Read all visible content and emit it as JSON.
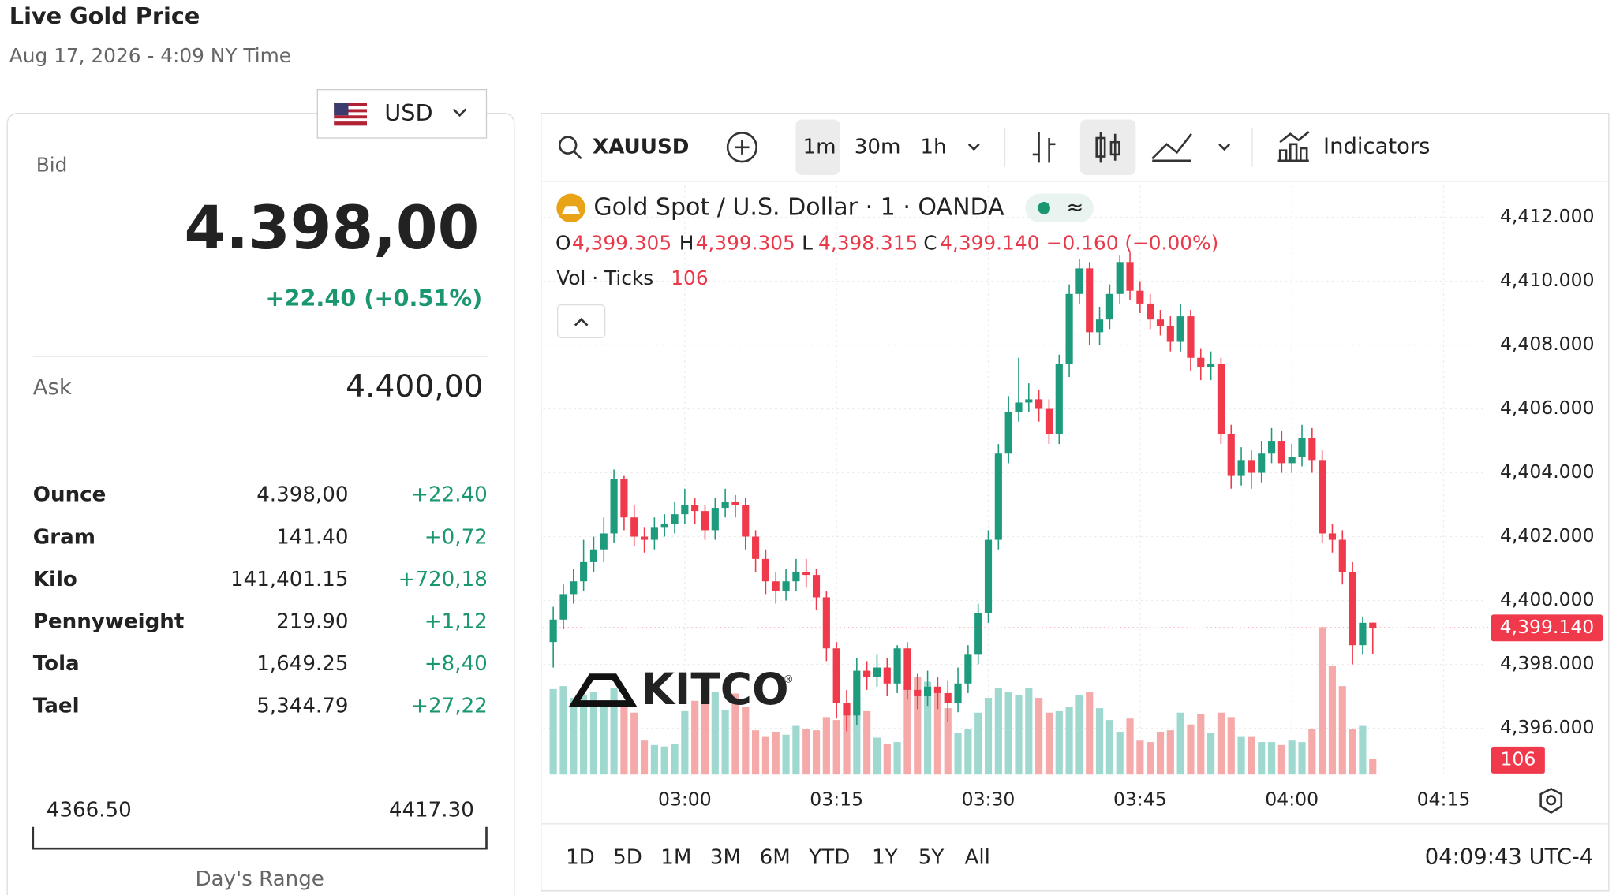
{
  "header": {
    "title": "Live Gold Price",
    "date": "Aug 17, 2026 - 4:09 NY Time"
  },
  "quote": {
    "currency": "USD",
    "bid_label": "Bid",
    "bid": "4.398,00",
    "change": "+22.40 (+0.51%)",
    "ask_label": "Ask",
    "ask": "4.400,00",
    "rows": [
      [
        "Ounce",
        "4.398,00",
        "+22.40"
      ],
      [
        "Gram",
        "141.40",
        "+0,72"
      ],
      [
        "Kilo",
        "141,401.15",
        "+720,18"
      ],
      [
        "Pennyweight",
        "219.90",
        "+1,12"
      ],
      [
        "Tola",
        "1,649.25",
        "+8,40"
      ],
      [
        "Tael",
        "5,344.79",
        "+27,22"
      ]
    ],
    "range_low": "4366.50",
    "range_high": "4417.30",
    "range_label": "Day's Range"
  },
  "toolbar": {
    "symbol": "XAUUSD",
    "intervals": [
      "1m",
      "30m",
      "1h"
    ],
    "indicators": "Indicators"
  },
  "footer": {
    "ranges": [
      "1D",
      "5D",
      "1M",
      "3M",
      "6M",
      "YTD",
      "1Y",
      "5Y",
      "All"
    ],
    "clock": "04:09:43 UTC-4"
  },
  "logo": "KITCO",
  "chart_data": {
    "type": "candlestick",
    "title": "Gold Spot / U.S. Dollar · 1 · OANDA",
    "ohlc": [
      {
        "key": "O",
        "value": "4,399.305"
      },
      {
        "key": "H",
        "value": "4,399.305"
      },
      {
        "key": "L",
        "value": "4,398.315"
      },
      {
        "key": "C",
        "value": "4,399.140"
      }
    ],
    "change": "−0.160 (−0.00%)",
    "volume_label": "Vol · Ticks",
    "price_tag": "4,399.140",
    "up_color": "#1e9a7c",
    "down_color": "#f0394b",
    "volume_up_color": "#9ed8ce",
    "volume_down_color": "#f5a9a9",
    "x": [
      "02:47",
      "02:48",
      "02:49",
      "02:50",
      "02:51",
      "02:52",
      "02:53",
      "02:54",
      "02:55",
      "02:56",
      "02:57",
      "02:58",
      "02:59",
      "03:00",
      "03:01",
      "03:02",
      "03:03",
      "03:04",
      "03:05",
      "03:06",
      "03:07",
      "03:08",
      "03:09",
      "03:10",
      "03:11",
      "03:12",
      "03:13",
      "03:14",
      "03:15",
      "03:16",
      "03:17",
      "03:18",
      "03:19",
      "03:20",
      "03:21",
      "03:22",
      "03:23",
      "03:24",
      "03:25",
      "03:26",
      "03:27",
      "03:28",
      "03:29",
      "03:30",
      "03:31",
      "03:32",
      "03:33",
      "03:34",
      "03:35",
      "03:36",
      "03:37",
      "03:38",
      "03:39",
      "03:40",
      "03:41",
      "03:42",
      "03:43",
      "03:44",
      "03:45",
      "03:46",
      "03:47",
      "03:48",
      "03:49",
      "03:50",
      "03:51",
      "03:52",
      "03:53",
      "03:54",
      "03:55",
      "03:56",
      "03:57",
      "03:58",
      "03:59",
      "04:00",
      "04:01",
      "04:02",
      "04:03",
      "04:04",
      "04:05",
      "04:06",
      "04:07",
      "04:08"
    ],
    "open": [
      4398.7,
      4399.4,
      4400.2,
      4400.6,
      4401.2,
      4401.6,
      4402.1,
      4403.8,
      4402.6,
      4402.0,
      4401.9,
      4402.3,
      4402.4,
      4402.7,
      4403.0,
      4402.8,
      4402.2,
      4402.9,
      4403.1,
      4403.0,
      4402.0,
      4401.3,
      4400.6,
      4400.3,
      4400.6,
      4400.9,
      4400.8,
      4400.1,
      4398.5,
      4396.8,
      4396.4,
      4397.8,
      4397.6,
      4397.9,
      4397.4,
      4398.5,
      4397.2,
      4397.0,
      4397.3,
      4397.1,
      4396.8,
      4397.4,
      4398.3,
      4399.6,
      4401.9,
      4404.6,
      4405.9,
      4406.2,
      4406.3,
      4406.0,
      4405.2,
      4407.4,
      4409.6,
      4410.4,
      4408.4,
      4408.8,
      4409.6,
      4410.6,
      4409.7,
      4409.3,
      4408.8,
      4408.6,
      4408.1,
      4408.9,
      4407.6,
      4407.3,
      4407.4,
      4405.2,
      4403.9,
      4404.4,
      4404.0,
      4404.6,
      4405.0,
      4404.3,
      4404.5,
      4405.1,
      4404.4,
      4402.1,
      4401.9,
      4400.9,
      4398.6,
      4399.305
    ],
    "high": [
      4399.8,
      4400.5,
      4401.0,
      4401.9,
      4402.0,
      4402.6,
      4404.1,
      4403.9,
      4403.0,
      4402.3,
      4402.6,
      4402.7,
      4403.1,
      4403.5,
      4403.2,
      4403.0,
      4403.2,
      4403.5,
      4403.3,
      4403.2,
      4402.2,
      4401.6,
      4400.9,
      4401.0,
      4401.3,
      4401.3,
      4401.0,
      4400.3,
      4398.7,
      4397.2,
      4398.2,
      4398.1,
      4398.3,
      4398.2,
      4398.6,
      4398.7,
      4397.7,
      4397.8,
      4397.6,
      4397.5,
      4397.9,
      4398.6,
      4399.9,
      4402.2,
      4404.9,
      4406.4,
      4407.6,
      4406.8,
      4406.6,
      4406.3,
      4407.7,
      4409.9,
      4410.7,
      4410.6,
      4409.2,
      4409.9,
      4410.8,
      4410.9,
      4410.0,
      4409.6,
      4409.1,
      4408.9,
      4409.3,
      4409.1,
      4407.9,
      4407.8,
      4407.6,
      4405.5,
      4404.8,
      4404.7,
      4405.0,
      4405.4,
      4405.3,
      4404.9,
      4405.5,
      4405.4,
      4404.7,
      4402.4,
      4402.2,
      4401.2,
      4399.5,
      4399.305
    ],
    "low": [
      4397.9,
      4399.1,
      4399.9,
      4400.3,
      4400.9,
      4401.2,
      4401.8,
      4402.2,
      4401.7,
      4401.5,
      4401.6,
      4402.0,
      4402.1,
      4402.4,
      4402.4,
      4401.9,
      4401.9,
      4402.6,
      4402.6,
      4401.6,
      4400.9,
      4400.2,
      4399.9,
      4400.0,
      4400.3,
      4400.4,
      4399.7,
      4398.1,
      4396.3,
      4395.9,
      4396.1,
      4397.2,
      4397.3,
      4397.0,
      4397.1,
      4396.9,
      4396.6,
      4396.7,
      4396.6,
      4396.2,
      4396.5,
      4397.1,
      4398.0,
      4399.3,
      4401.6,
      4404.3,
      4405.6,
      4405.9,
      4405.6,
      4404.9,
      4404.9,
      4407.0,
      4409.3,
      4408.0,
      4408.0,
      4408.5,
      4409.3,
      4409.4,
      4409.0,
      4408.5,
      4408.3,
      4407.8,
      4407.8,
      4407.2,
      4406.9,
      4406.9,
      4404.9,
      4403.5,
      4403.6,
      4403.5,
      4403.7,
      4404.3,
      4404.0,
      4404.0,
      4404.2,
      4404.0,
      4401.8,
      4401.5,
      4400.5,
      4398.0,
      4398.3,
      4398.315
    ],
    "close": [
      4399.4,
      4400.2,
      4400.6,
      4401.2,
      4401.6,
      4402.1,
      4403.8,
      4402.6,
      4402.0,
      4401.9,
      4402.3,
      4402.4,
      4402.7,
      4403.0,
      4402.8,
      4402.2,
      4402.9,
      4403.1,
      4403.0,
      4402.0,
      4401.3,
      4400.6,
      4400.3,
      4400.6,
      4400.9,
      4400.8,
      4400.1,
      4398.5,
      4396.8,
      4396.4,
      4397.8,
      4397.6,
      4397.9,
      4397.4,
      4398.5,
      4397.2,
      4397.0,
      4397.3,
      4397.1,
      4396.8,
      4397.4,
      4398.3,
      4399.6,
      4401.9,
      4404.6,
      4405.9,
      4406.2,
      4406.3,
      4406.0,
      4405.2,
      4407.4,
      4409.6,
      4410.4,
      4408.4,
      4408.8,
      4409.6,
      4410.6,
      4409.7,
      4409.3,
      4408.8,
      4408.6,
      4408.1,
      4408.9,
      4407.6,
      4407.3,
      4407.4,
      4405.2,
      4403.9,
      4404.4,
      4404.0,
      4404.6,
      4405.0,
      4404.3,
      4404.5,
      4405.1,
      4404.4,
      4402.1,
      4401.9,
      4400.9,
      4398.6,
      4399.3,
      4399.14
    ],
    "volume": [
      580,
      600,
      520,
      540,
      560,
      480,
      590,
      470,
      420,
      230,
      200,
      190,
      210,
      430,
      500,
      520,
      560,
      440,
      550,
      460,
      300,
      260,
      290,
      270,
      330,
      310,
      300,
      390,
      370,
      470,
      520,
      430,
      250,
      210,
      220,
      600,
      660,
      630,
      560,
      450,
      280,
      310,
      420,
      520,
      590,
      560,
      540,
      590,
      520,
      420,
      430,
      460,
      540,
      560,
      450,
      370,
      290,
      380,
      230,
      220,
      290,
      300,
      420,
      340,
      410,
      280,
      420,
      390,
      260,
      260,
      220,
      220,
      200,
      230,
      220,
      310,
      1000,
      740,
      600,
      310,
      330,
      106
    ],
    "xlim": [
      "02:46",
      "04:19"
    ],
    "xticks": [
      "03:00",
      "03:15",
      "03:30",
      "03:45",
      "04:00",
      "04:15"
    ],
    "ylim": [
      4394.55,
      4413
    ],
    "yticks": [
      {
        "value": 4396,
        "label": "4,396.000"
      },
      {
        "value": 4398,
        "label": "4,398.000"
      },
      {
        "value": 4400,
        "label": "4,400.000"
      },
      {
        "value": 4402,
        "label": "4,402.000"
      },
      {
        "value": 4404,
        "label": "4,404.000"
      },
      {
        "value": 4406,
        "label": "4,406.000"
      },
      {
        "value": 4408,
        "label": "4,408.000"
      },
      {
        "value": 4410,
        "label": "4,410.000"
      },
      {
        "value": 4412,
        "label": "4,412.000"
      }
    ],
    "volume_lim": [
      0,
      4000
    ],
    "grid": true
  }
}
